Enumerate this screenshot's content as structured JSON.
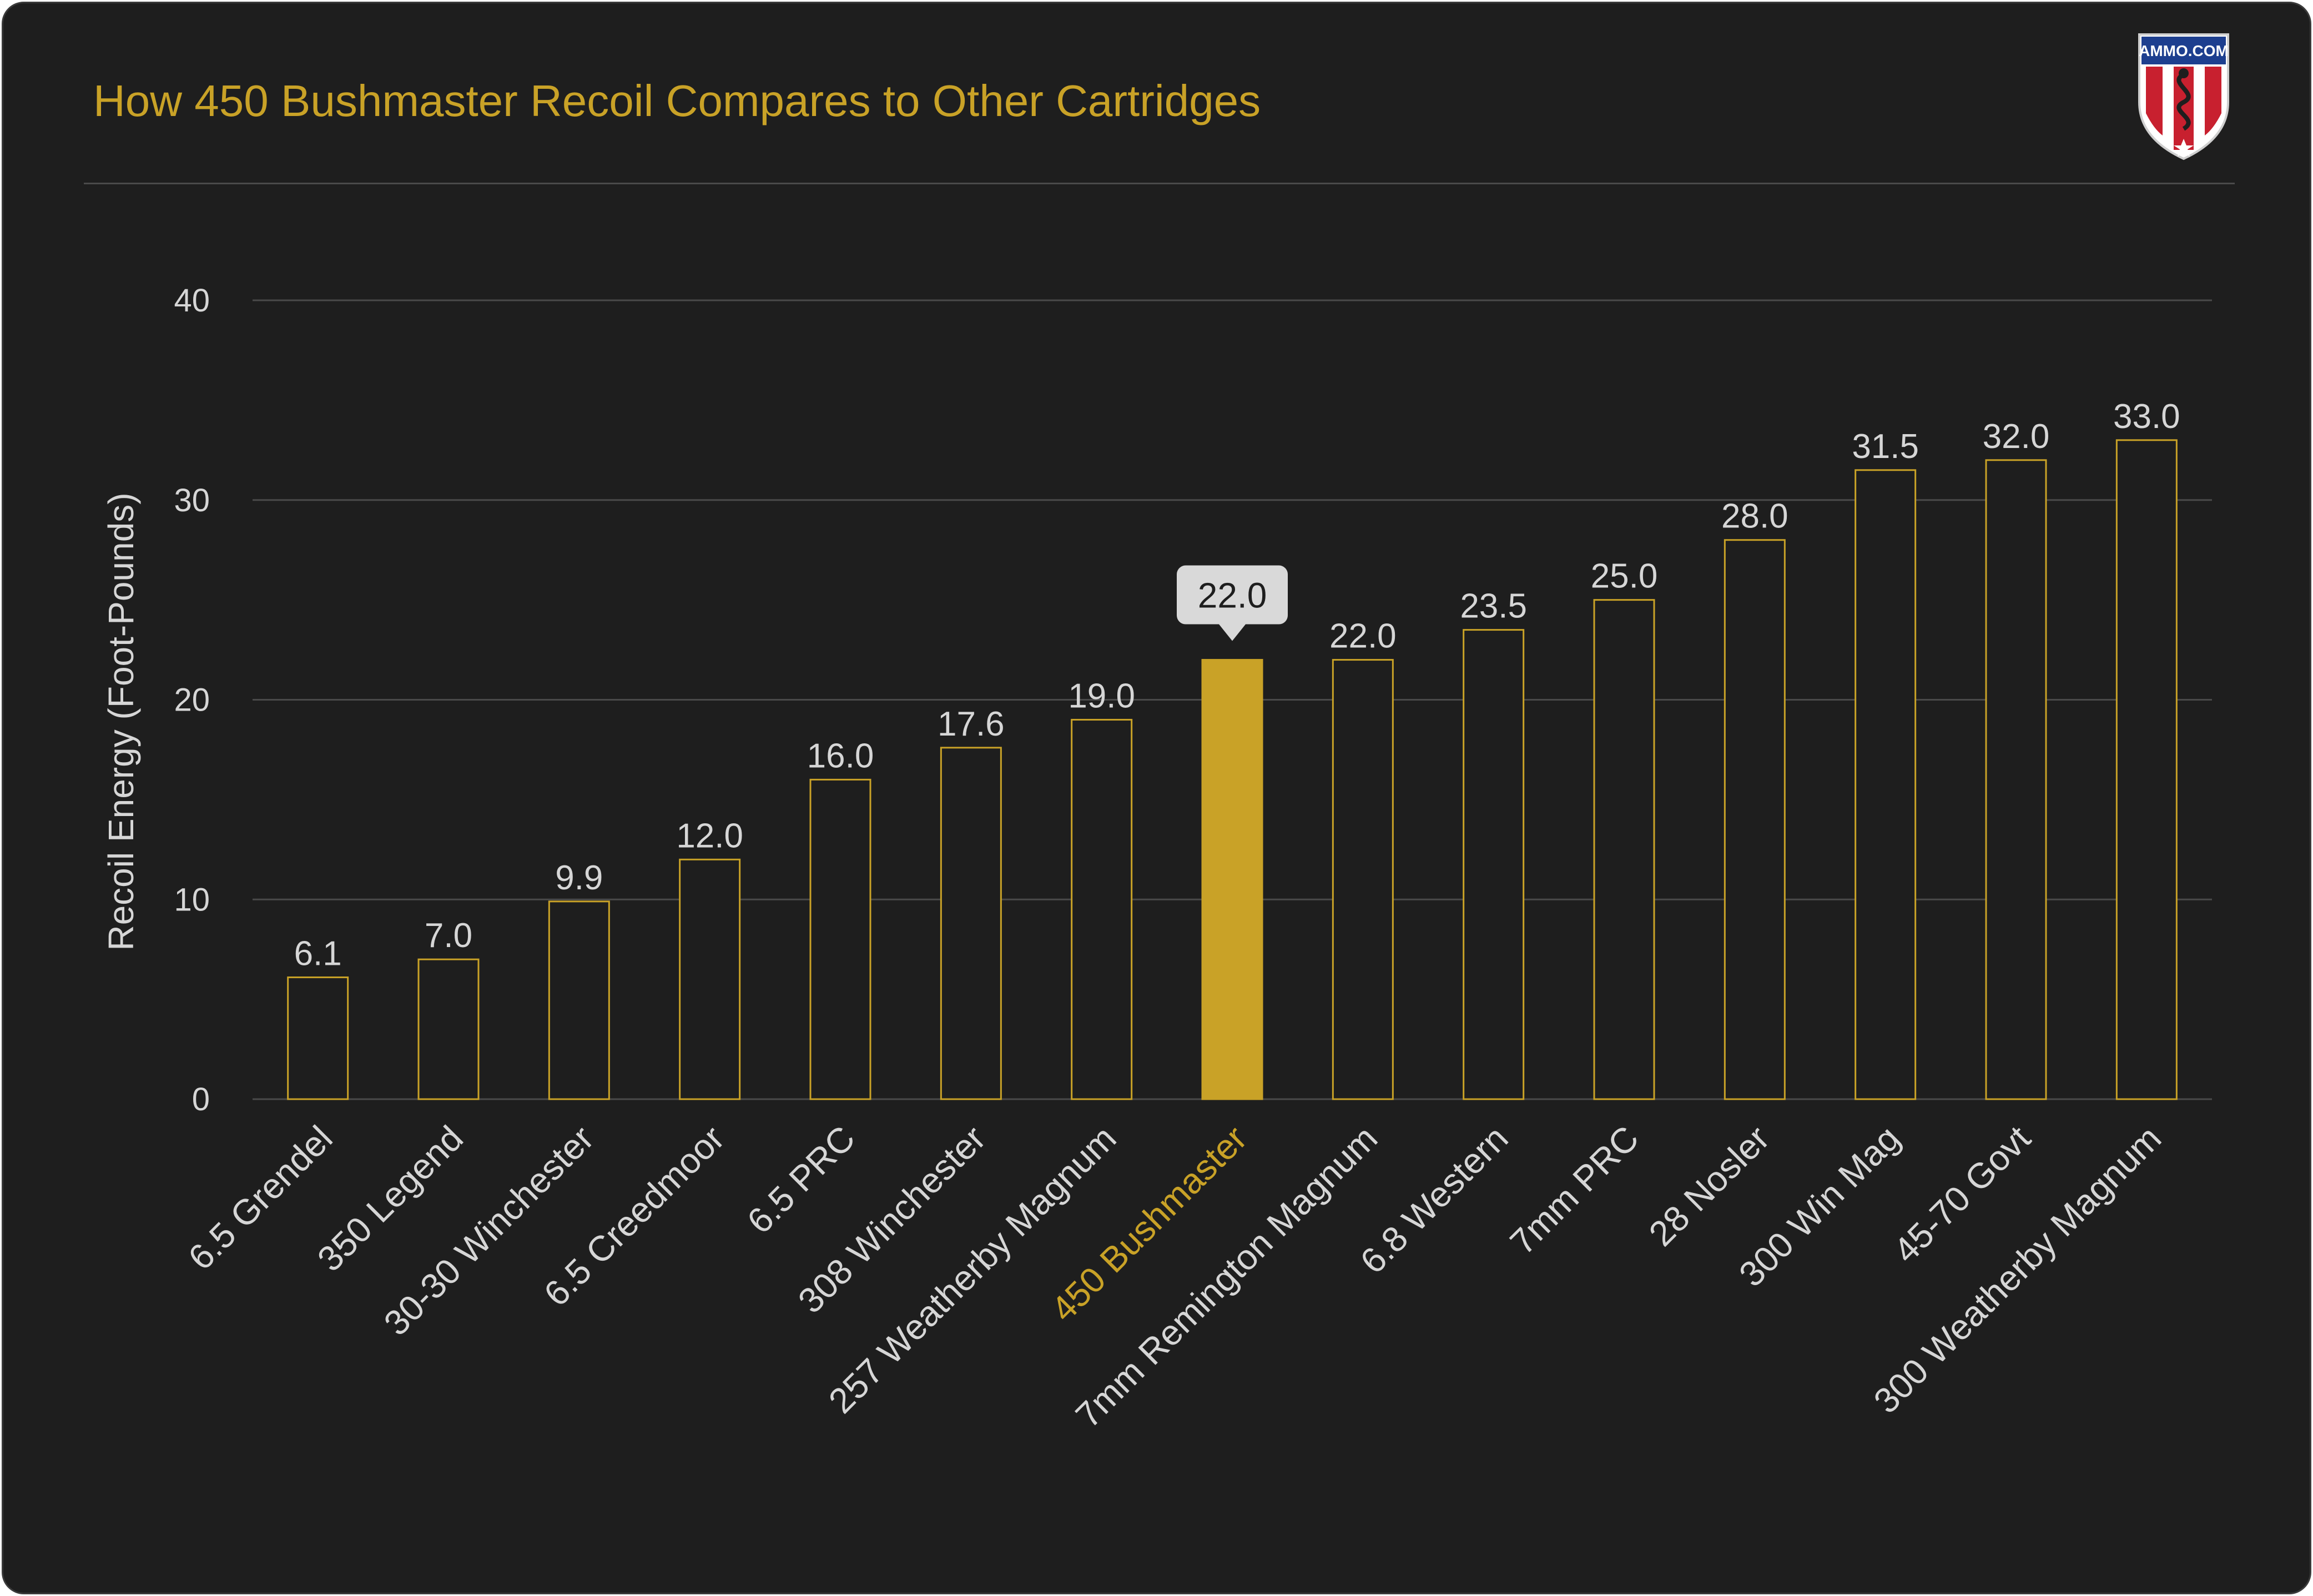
{
  "title": "How 450 Bushmaster Recoil Compares to Other Cartridges",
  "logo": {
    "text": "AMMO.COM"
  },
  "colors": {
    "background": "#1e1e1e",
    "accent": "#c9a227",
    "gridline": "#4a4a4a",
    "text": "#d6d6d6"
  },
  "chart_data": {
    "type": "bar",
    "ylabel": "Recoil Energy (Foot-Pounds)",
    "xlabel": "",
    "ylim": [
      0,
      40
    ],
    "yticks": [
      0,
      10,
      20,
      30,
      40
    ],
    "grid": true,
    "categories": [
      "6.5 Grendel",
      "350 Legend",
      "30-30 Winchester",
      "6.5 Creedmoor",
      "6.5 PRC",
      "308 Winchester",
      "257 Weatherby Magnum",
      "450 Bushmaster",
      "7mm Remington Magnum",
      "6.8 Western",
      "7mm PRC",
      "28 Nosler",
      "300 Win Mag",
      "45-70 Govt",
      "300 Weatherby Magnum"
    ],
    "values": [
      6.1,
      7.0,
      9.9,
      12.0,
      16.0,
      17.6,
      19.0,
      22.0,
      22.0,
      23.5,
      25.0,
      28.0,
      31.5,
      32.0,
      33.0
    ],
    "value_labels": [
      "6.1",
      "7.0",
      "9.9",
      "12.0",
      "16.0",
      "17.6",
      "19.0",
      "22.0",
      "22.0",
      "23.5",
      "25.0",
      "28.0",
      "31.5",
      "32.0",
      "33.0"
    ],
    "highlight_index": 7,
    "tooltip": "22.0"
  }
}
